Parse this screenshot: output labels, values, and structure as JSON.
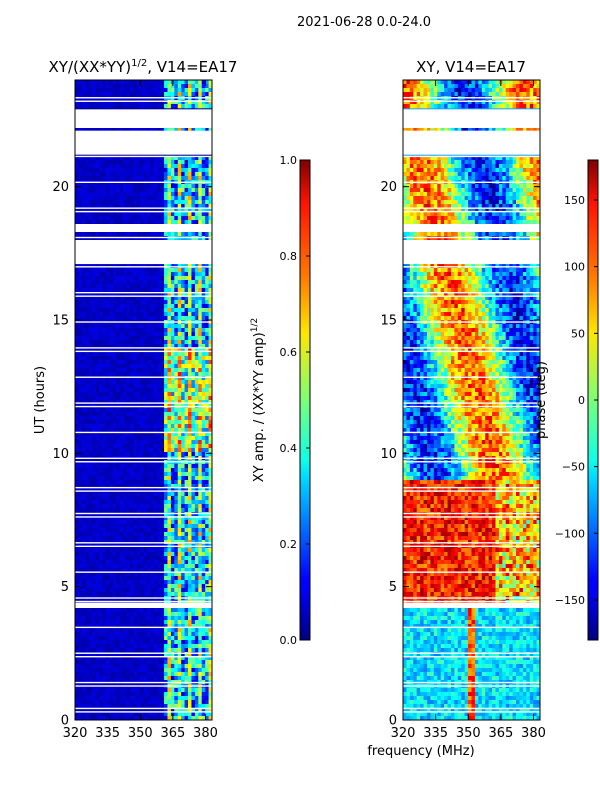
{
  "figure": {
    "suptitle": "2021-06-28 0.0-24.0",
    "shared_xlabel": "frequency (MHz)"
  },
  "chart_data": [
    {
      "type": "heatmap",
      "title_main": "XY/(XX*YY)",
      "title_sup": "1/2",
      "title_tail": ", V14=EA17",
      "ylabel": "UT (hours)",
      "xlim": [
        320,
        383
      ],
      "ylim": [
        0,
        24
      ],
      "xticks": [
        320,
        335,
        350,
        365,
        380
      ],
      "yticks": [
        0,
        5,
        10,
        15,
        20
      ],
      "colorbar": {
        "label_main": "XY amp. / (XX*YY amp)",
        "label_sup": "1/2",
        "range": [
          0.0,
          1.0
        ],
        "ticks": [
          "0.0",
          "0.2",
          "0.4",
          "0.6",
          "0.8",
          "1.0"
        ],
        "tick_values": [
          0.0,
          0.2,
          0.4,
          0.6,
          0.8,
          1.0
        ]
      },
      "data_gaps_hours": [
        [
          22.2,
          22.9
        ],
        [
          21.2,
          22.1
        ],
        [
          17.1,
          18.0
        ],
        [
          18.3,
          18.6
        ],
        [
          4.2,
          4.4
        ]
      ]
    },
    {
      "type": "heatmap",
      "title": "XY, V14=EA17",
      "ylabel": "",
      "xlim": [
        320,
        383
      ],
      "ylim": [
        0,
        24
      ],
      "xticks": [
        320,
        335,
        350,
        365,
        380
      ],
      "yticks": [
        0,
        5,
        10,
        15,
        20
      ],
      "colorbar": {
        "label": "phase (deg)",
        "range": [
          -180,
          180
        ],
        "ticks": [
          "−150",
          "−100",
          "−50",
          "0",
          "50",
          "100",
          "150"
        ],
        "tick_values": [
          -150,
          -100,
          -50,
          0,
          50,
          100,
          150
        ]
      },
      "data_gaps_hours": [
        [
          22.2,
          22.9
        ],
        [
          21.2,
          22.1
        ],
        [
          17.1,
          18.0
        ],
        [
          18.3,
          18.6
        ],
        [
          4.2,
          4.4
        ]
      ]
    }
  ]
}
